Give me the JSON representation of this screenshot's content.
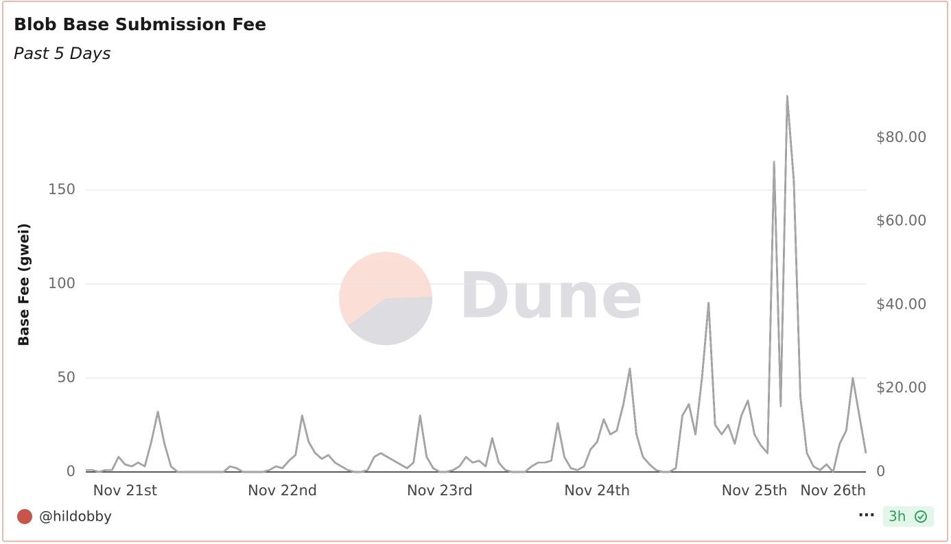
{
  "chart_data": {
    "type": "line",
    "title": "Blob Base Submission Fee",
    "subtitle": "Past 5 Days",
    "y_label": "Base Fee (gwei)",
    "watermark": "Dune",
    "author": "@hildobby",
    "age": "3h",
    "categories": [
      null,
      null,
      null,
      null,
      null,
      null,
      "Nov 21st",
      null,
      null,
      null,
      null,
      null,
      null,
      null,
      null,
      null,
      null,
      null,
      null,
      null,
      null,
      null,
      null,
      null,
      null,
      null,
      null,
      null,
      null,
      null,
      "Nov 22nd",
      null,
      null,
      null,
      null,
      null,
      null,
      null,
      null,
      null,
      null,
      null,
      null,
      null,
      null,
      null,
      null,
      null,
      null,
      null,
      null,
      null,
      null,
      null,
      "Nov 23rd",
      null,
      null,
      null,
      null,
      null,
      null,
      null,
      null,
      null,
      null,
      null,
      null,
      null,
      null,
      null,
      null,
      null,
      null,
      null,
      null,
      null,
      null,
      null,
      "Nov 24th",
      null,
      null,
      null,
      null,
      null,
      null,
      null,
      null,
      null,
      null,
      null,
      null,
      null,
      null,
      null,
      null,
      null,
      null,
      null,
      null,
      null,
      null,
      null,
      "Nov 25th",
      null,
      null,
      null,
      null,
      null,
      null,
      null,
      null,
      null,
      null,
      null,
      "Nov 26th",
      null,
      null,
      null,
      null,
      null
    ],
    "series": [
      {
        "color": "#111111",
        "values": [
          1,
          1,
          0,
          1,
          1,
          8,
          4,
          3,
          5,
          3,
          16,
          32,
          15,
          3,
          0,
          0,
          0,
          0,
          0,
          0,
          0,
          0,
          3,
          2,
          0,
          0,
          0,
          0,
          1,
          3,
          2,
          6,
          9,
          30,
          16,
          10,
          7,
          9,
          5,
          3,
          1,
          0,
          0,
          1,
          8,
          10,
          8,
          6,
          4,
          2,
          5,
          30,
          8,
          2,
          0,
          0,
          1,
          3,
          8,
          5,
          6,
          3,
          18,
          5,
          1,
          0,
          0,
          0,
          3,
          5,
          5,
          6,
          26,
          8,
          2,
          1,
          3,
          12,
          16,
          28,
          20,
          22,
          36,
          55,
          20,
          8,
          4,
          1,
          0,
          0,
          2,
          30,
          36,
          20,
          50,
          90,
          25,
          20,
          25,
          15,
          30,
          38,
          20,
          14,
          10,
          165,
          35,
          200,
          155,
          40,
          10,
          3,
          1,
          4,
          0,
          15,
          22,
          50,
          30,
          10
        ]
      },
      {
        "color": "#a6a6a6",
        "axis": "y2",
        "values": [
          0.45,
          0.45,
          0,
          0.45,
          0.45,
          3.6,
          1.8,
          1.35,
          2.25,
          1.35,
          7.2,
          14.4,
          6.75,
          1.35,
          0,
          0,
          0,
          0,
          0,
          0,
          0,
          0,
          1.35,
          0.9,
          0,
          0,
          0,
          0,
          0.45,
          1.35,
          0.9,
          2.7,
          4.05,
          13.5,
          7.2,
          4.5,
          3.15,
          4.05,
          2.25,
          1.35,
          0.45,
          0,
          0,
          0.45,
          3.6,
          4.5,
          3.6,
          2.7,
          1.8,
          0.9,
          2.25,
          13.5,
          3.6,
          0.9,
          0,
          0,
          0.45,
          1.35,
          3.6,
          2.25,
          2.7,
          1.35,
          8.1,
          2.25,
          0.45,
          0,
          0,
          0,
          1.35,
          2.25,
          2.25,
          2.7,
          11.7,
          3.6,
          0.9,
          0.45,
          1.35,
          5.4,
          7.2,
          12.6,
          9,
          9.9,
          16.2,
          24.75,
          9,
          3.6,
          1.8,
          0.45,
          0,
          0,
          0.9,
          13.5,
          16.2,
          9,
          22.5,
          40.5,
          11.25,
          9,
          11.25,
          6.75,
          13.5,
          17.1,
          9,
          6.3,
          4.5,
          74.25,
          15.75,
          90,
          69.75,
          18,
          4.5,
          1.35,
          0.45,
          1.8,
          0,
          6.75,
          9.9,
          22.5,
          13.5,
          4.5
        ]
      }
    ],
    "ylim": [
      0,
      200
    ],
    "yticks": [
      0,
      50,
      100,
      150
    ],
    "y2lim": [
      0,
      90
    ],
    "y2ticks": [
      0,
      {
        "value": 20,
        "label": "$20.00"
      },
      {
        "value": 40,
        "label": "$40.00"
      },
      {
        "value": 60,
        "label": "$60.00"
      },
      {
        "value": 80,
        "label": "$80.00"
      }
    ],
    "grid": true
  }
}
